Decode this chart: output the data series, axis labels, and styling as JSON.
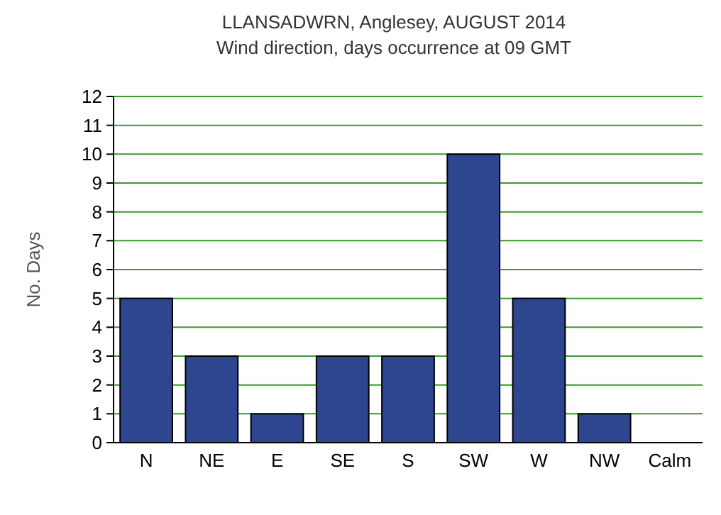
{
  "chart_data": {
    "type": "bar",
    "title": "LLANSADWRN, Anglesey, AUGUST 2014",
    "subtitle": "Wind direction, days occurrence at 09 GMT",
    "ylabel": "No. Days",
    "categories": [
      "N",
      "NE",
      "E",
      "SE",
      "S",
      "SW",
      "W",
      "NW",
      "Calm"
    ],
    "values": [
      5,
      3,
      1,
      3,
      3,
      10,
      5,
      1,
      0
    ],
    "color": "#2e4690",
    "ylim": [
      0,
      12
    ],
    "yticks": [
      0,
      1,
      2,
      3,
      4,
      5,
      6,
      7,
      8,
      9,
      10,
      11,
      12
    ],
    "grid": "y"
  }
}
